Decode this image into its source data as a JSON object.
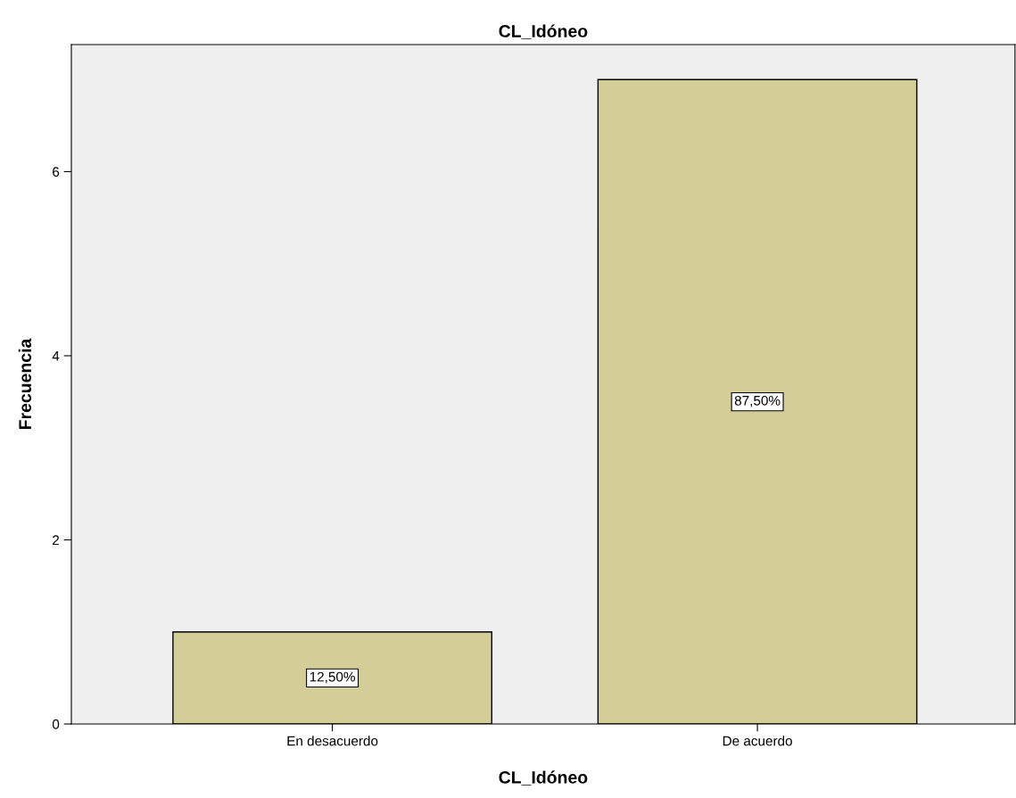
{
  "chart_data": {
    "type": "bar",
    "title": "CL_Idóneo",
    "xlabel": "CL_Idóneo",
    "ylabel": "Frecuencia",
    "categories": [
      "En desacuerdo",
      "De acuerdo"
    ],
    "series": [
      {
        "color": "#d3ce98",
        "values": [
          1,
          7
        ]
      }
    ],
    "annotations": [
      "12,50%",
      "87,50%"
    ],
    "ylim": [
      0,
      7.38
    ],
    "yticks": [
      0,
      2,
      4,
      6
    ],
    "grid": false,
    "legend": false
  }
}
